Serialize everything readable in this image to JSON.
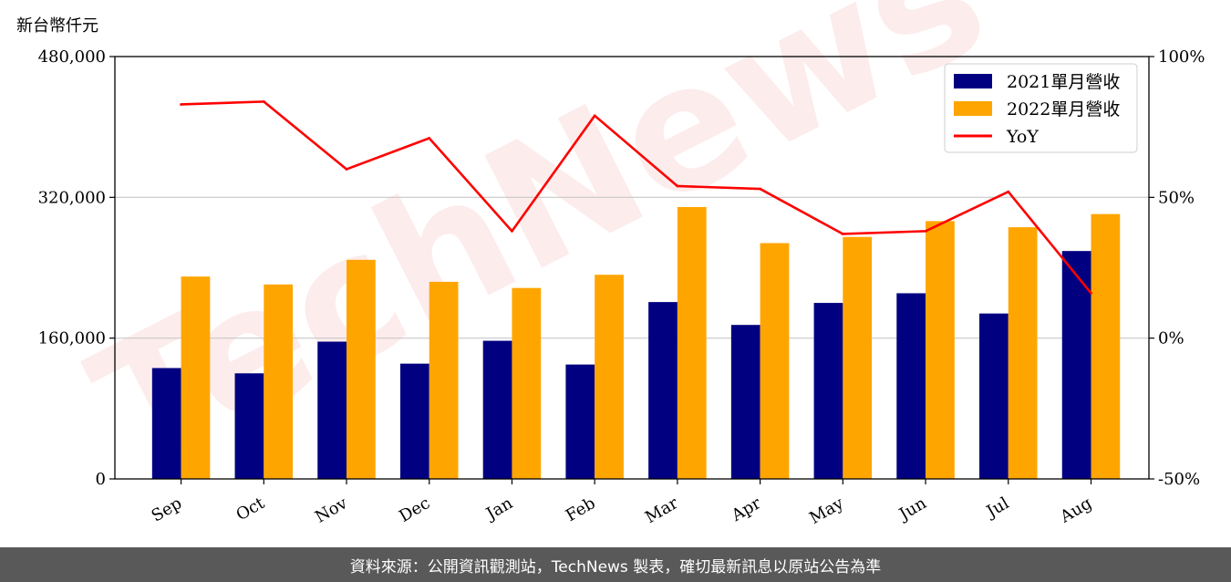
{
  "chart_data": {
    "type": "bar",
    "y_left_unit_label": "新台幣仟元",
    "categories": [
      "Sep",
      "Oct",
      "Nov",
      "Dec",
      "Jan",
      "Feb",
      "Mar",
      "Apr",
      "May",
      "Jun",
      "Jul",
      "Aug"
    ],
    "series": [
      {
        "name": "2021單月營收",
        "type": "bar",
        "axis": "left",
        "color": "#000080",
        "values": [
          126000,
          120000,
          156000,
          131000,
          157000,
          130000,
          201000,
          175000,
          200000,
          211000,
          188000,
          259000
        ]
      },
      {
        "name": "2022單月營收",
        "type": "bar",
        "axis": "left",
        "color": "#FFA500",
        "values": [
          230000,
          221000,
          249000,
          224000,
          217000,
          232000,
          309000,
          268000,
          275000,
          293000,
          286000,
          301000
        ]
      },
      {
        "name": "YoY",
        "type": "line",
        "axis": "right",
        "color": "#FF0000",
        "values": [
          83,
          84,
          60,
          71,
          38,
          79,
          54,
          53,
          37,
          38,
          52,
          16
        ]
      }
    ],
    "y_left": {
      "lim": [
        0,
        480000
      ],
      "ticks": [
        0,
        160000,
        320000,
        480000
      ],
      "tick_labels": [
        "0",
        "160,000",
        "320,000",
        "480,000"
      ]
    },
    "y_right": {
      "lim": [
        -50,
        100
      ],
      "ticks": [
        -50,
        0,
        50,
        100
      ],
      "tick_labels": [
        "-50%",
        "0%",
        "50%",
        "100%"
      ]
    },
    "grid": "horizontal",
    "legend_position": "top-right"
  },
  "watermark": "TechNews",
  "footer": {
    "source_text": "資料來源：公開資訊觀測站，TechNews 製表，確切最新訊息以原站公告為準"
  }
}
